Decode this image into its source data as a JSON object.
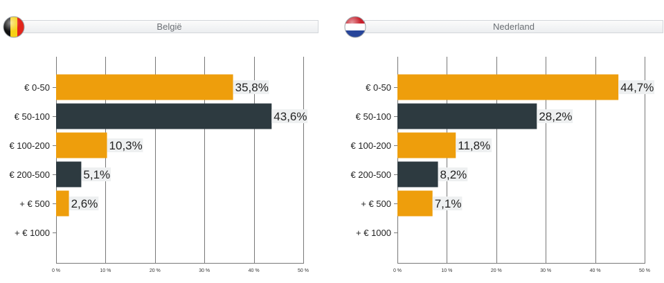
{
  "colors": {
    "orange": "#ee9e0c",
    "dark": "#2d3a40",
    "label_bg": "#eef0f1",
    "grid": "#777777"
  },
  "charts": [
    {
      "country": "België",
      "flag": "belgium-flag-icon"
    },
    {
      "country": "Nederland",
      "flag": "netherlands-flag-icon"
    }
  ],
  "chart_data": [
    {
      "type": "bar",
      "orientation": "horizontal",
      "title": "België",
      "categories": [
        "€ 0-50",
        "€ 50-100",
        "€ 100-200",
        "€ 200-500",
        "+ € 500",
        "+ € 1000"
      ],
      "values": [
        35.8,
        43.6,
        10.3,
        5.1,
        2.6,
        null
      ],
      "value_labels": [
        "35,8%",
        "43,6%",
        "10,3%",
        "5,1%",
        "2,6%",
        ""
      ],
      "bar_colors": [
        "orange",
        "dark",
        "orange",
        "dark",
        "orange",
        "dark"
      ],
      "xlim": [
        0,
        50
      ],
      "xticks": [
        0,
        10,
        20,
        30,
        40,
        50
      ],
      "xtick_labels": [
        "0 %",
        "10 %",
        "20 %",
        "30 %",
        "40 %",
        "50 %"
      ],
      "grid": true
    },
    {
      "type": "bar",
      "orientation": "horizontal",
      "title": "Nederland",
      "categories": [
        "€ 0-50",
        "€ 50-100",
        "€ 100-200",
        "€ 200-500",
        "+ € 500",
        "+ € 1000"
      ],
      "values": [
        44.7,
        28.2,
        11.8,
        8.2,
        7.1,
        null
      ],
      "value_labels": [
        "44,7%",
        "28,2%",
        "11,8%",
        "8,2%",
        "7,1%",
        ""
      ],
      "bar_colors": [
        "orange",
        "dark",
        "orange",
        "dark",
        "orange",
        "dark"
      ],
      "xlim": [
        0,
        50
      ],
      "xticks": [
        0,
        10,
        20,
        30,
        40,
        50
      ],
      "xtick_labels": [
        "0 %",
        "10 %",
        "20 %",
        "30 %",
        "40 %",
        "50 %"
      ],
      "grid": true
    }
  ]
}
